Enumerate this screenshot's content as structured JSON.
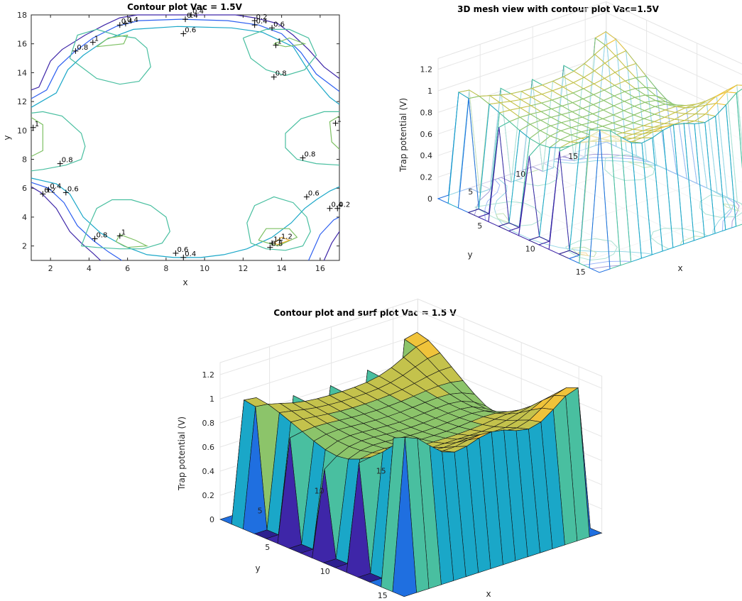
{
  "figure": {
    "panels": [
      {
        "title": "Contour plot Vac = 1.5V",
        "xlabel": "x",
        "ylabel": "y"
      },
      {
        "title": "3D mesh view with contour plot Vac=1.5V",
        "xlabel": "x",
        "ylabel": "y",
        "zlabel": "Trap potential (V)"
      },
      {
        "title": "Contour plot and surf plot Vac = 1.5 V",
        "xlabel": "x",
        "ylabel": "y",
        "zlabel": "Trap potential (V)"
      }
    ]
  },
  "chart_data": [
    {
      "type": "contour",
      "title": "Contour plot Vac = 1.5V",
      "xlabel": "x",
      "ylabel": "y",
      "xlim": [
        1,
        17
      ],
      "ylim": [
        1,
        18
      ],
      "xticks": [
        "2",
        "4",
        "6",
        "8",
        "10",
        "12",
        "14",
        "16"
      ],
      "yticks": [
        "2",
        "4",
        "6",
        "8",
        "10",
        "12",
        "14",
        "16",
        "18"
      ],
      "levels": [
        0.2,
        0.4,
        0.6,
        0.8,
        1,
        1.2
      ],
      "level_colors": [
        "#3e26a8",
        "#2d5ff0",
        "#1aa7c8",
        "#49bfa0",
        "#7dc063",
        "#f0b030"
      ],
      "contour_labels": [
        {
          "x": 5.6,
          "y": 17.3,
          "text": "0.4"
        },
        {
          "x": 5.9,
          "y": 17.4,
          "text": "0.4"
        },
        {
          "x": 9.0,
          "y": 17.7,
          "text": "0.4"
        },
        {
          "x": 9.3,
          "y": 18.0,
          "text": "0.4"
        },
        {
          "x": 8.9,
          "y": 16.7,
          "text": "0.6"
        },
        {
          "x": 12.6,
          "y": 17.6,
          "text": "0.2"
        },
        {
          "x": 12.6,
          "y": 17.3,
          "text": "0.4"
        },
        {
          "x": 13.5,
          "y": 17.1,
          "text": "0.6"
        },
        {
          "x": 4.2,
          "y": 16.1,
          "text": "1"
        },
        {
          "x": 3.3,
          "y": 15.5,
          "text": "0.8"
        },
        {
          "x": 13.7,
          "y": 15.9,
          "text": "1"
        },
        {
          "x": 13.6,
          "y": 13.7,
          "text": "0.8"
        },
        {
          "x": 1.1,
          "y": 10.2,
          "text": "1"
        },
        {
          "x": 16.8,
          "y": 10.5,
          "text": "1"
        },
        {
          "x": 2.5,
          "y": 7.7,
          "text": "0.8"
        },
        {
          "x": 15.1,
          "y": 8.1,
          "text": "0.8"
        },
        {
          "x": 1.9,
          "y": 5.9,
          "text": "0.4"
        },
        {
          "x": 1.6,
          "y": 5.6,
          "text": "0.2"
        },
        {
          "x": 2.8,
          "y": 5.7,
          "text": "0.6"
        },
        {
          "x": 15.3,
          "y": 5.4,
          "text": "0.6"
        },
        {
          "x": 16.5,
          "y": 4.6,
          "text": "0.4"
        },
        {
          "x": 16.9,
          "y": 4.6,
          "text": "0.2"
        },
        {
          "x": 4.3,
          "y": 2.5,
          "text": "0.8"
        },
        {
          "x": 5.6,
          "y": 2.7,
          "text": "1"
        },
        {
          "x": 13.5,
          "y": 2.2,
          "text": "1"
        },
        {
          "x": 13.9,
          "y": 2.4,
          "text": "1.2"
        },
        {
          "x": 13.4,
          "y": 1.9,
          "text": "0.8"
        },
        {
          "x": 8.5,
          "y": 1.5,
          "text": "0.6"
        },
        {
          "x": 8.9,
          "y": 1.2,
          "text": "0.4"
        }
      ],
      "contours": [
        {
          "level": 0.2,
          "points": [
            [
              1,
              12.8
            ],
            [
              1.4,
              13.0
            ],
            [
              2.0,
              14.8
            ],
            [
              2.6,
              15.6
            ],
            [
              3.8,
              16.6
            ],
            [
              4.8,
              17.3
            ],
            [
              5.6,
              17.8
            ],
            [
              6.5,
              18
            ],
            [
              11.6,
              18
            ],
            [
              12.6,
              17.8
            ],
            [
              13.8,
              17.4
            ],
            [
              14.6,
              16.6
            ],
            [
              15.4,
              15.6
            ],
            [
              16.2,
              14.4
            ],
            [
              17,
              13.6
            ]
          ]
        },
        {
          "level": 0.4,
          "points": [
            [
              1,
              12.2
            ],
            [
              1.8,
              12.8
            ],
            [
              2.4,
              14.4
            ],
            [
              3.2,
              15.4
            ],
            [
              4.2,
              16.4
            ],
            [
              5.4,
              17.2
            ],
            [
              6.6,
              17.6
            ],
            [
              8.8,
              17.7
            ],
            [
              11.2,
              17.6
            ],
            [
              12.8,
              17.3
            ],
            [
              14.0,
              16.7
            ],
            [
              15.0,
              15.4
            ],
            [
              15.8,
              13.9
            ],
            [
              17,
              12.7
            ]
          ]
        },
        {
          "level": 0.6,
          "points": [
            [
              1,
              11.6
            ],
            [
              2.3,
              12.6
            ],
            [
              2.9,
              14.2
            ],
            [
              3.7,
              15.2
            ],
            [
              4.9,
              16.3
            ],
            [
              6.3,
              17.0
            ],
            [
              8.6,
              17.2
            ],
            [
              11.4,
              17.1
            ],
            [
              13.0,
              16.8
            ],
            [
              14.6,
              15.8
            ],
            [
              15.6,
              13.7
            ],
            [
              16.5,
              12.3
            ],
            [
              17,
              11.8
            ]
          ]
        },
        {
          "level": 0.2,
          "points": [
            [
              1,
              6.1
            ],
            [
              1.5,
              5.7
            ],
            [
              2.3,
              4.6
            ],
            [
              3.0,
              3.0
            ],
            [
              3.6,
              2.2
            ],
            [
              4.2,
              1.5
            ],
            [
              4.6,
              1
            ]
          ]
        },
        {
          "level": 0.4,
          "points": [
            [
              1,
              6.4
            ],
            [
              1.9,
              6.0
            ],
            [
              2.7,
              5.0
            ],
            [
              3.4,
              3.4
            ],
            [
              4.2,
              2.4
            ],
            [
              5.0,
              1.6
            ],
            [
              5.7,
              1
            ]
          ]
        },
        {
          "level": 0.6,
          "points": [
            [
              1,
              6.7
            ],
            [
              2.3,
              6.3
            ],
            [
              3.0,
              5.6
            ],
            [
              3.7,
              4.0
            ],
            [
              4.6,
              2.9
            ],
            [
              5.8,
              2.0
            ],
            [
              7.0,
              1.4
            ],
            [
              8.4,
              1.2
            ],
            [
              9.8,
              1.2
            ],
            [
              11.0,
              1.4
            ],
            [
              12.2,
              1.8
            ],
            [
              13.5,
              2.6
            ],
            [
              14.5,
              3.6
            ],
            [
              15.2,
              4.6
            ],
            [
              15.8,
              5.2
            ],
            [
              16.5,
              5.8
            ],
            [
              17,
              6.1
            ]
          ]
        },
        {
          "level": 0.2,
          "points": [
            [
              16.2,
              1
            ],
            [
              16.6,
              2.2
            ],
            [
              17,
              3.0
            ]
          ]
        },
        {
          "level": 0.4,
          "points": [
            [
              15.4,
              1
            ],
            [
              16.0,
              2.8
            ],
            [
              16.7,
              3.8
            ],
            [
              17,
              4.0
            ]
          ]
        },
        {
          "level": 0.8,
          "points": [
            [
              3.0,
              15.0
            ],
            [
              3.4,
              16.6
            ],
            [
              4.4,
              17.0
            ],
            [
              5.4,
              16.6
            ],
            [
              6.4,
              16.4
            ],
            [
              7.0,
              15.7
            ],
            [
              7.2,
              14.4
            ],
            [
              6.6,
              13.4
            ],
            [
              5.6,
              13.2
            ],
            [
              4.4,
              13.6
            ],
            [
              3.0,
              15.0
            ]
          ]
        },
        {
          "level": 0.8,
          "points": [
            [
              12.0,
              16.4
            ],
            [
              12.4,
              15.0
            ],
            [
              13.2,
              14.2
            ],
            [
              14.2,
              13.8
            ],
            [
              15.2,
              14.2
            ],
            [
              15.8,
              15.2
            ],
            [
              15.4,
              16.4
            ],
            [
              14.4,
              17.0
            ],
            [
              13.2,
              17.0
            ],
            [
              12.0,
              16.4
            ]
          ]
        },
        {
          "level": 0.8,
          "points": [
            [
              1,
              11.2
            ],
            [
              1.6,
              11.3
            ],
            [
              2.6,
              11.0
            ],
            [
              3.6,
              9.8
            ],
            [
              3.8,
              8.9
            ],
            [
              3.6,
              8.0
            ],
            [
              2.8,
              7.6
            ],
            [
              1.6,
              7.3
            ],
            [
              1,
              7.2
            ]
          ]
        },
        {
          "level": 0.8,
          "points": [
            [
              17,
              11.3
            ],
            [
              16.2,
              11.3
            ],
            [
              15.0,
              10.8
            ],
            [
              14.2,
              9.8
            ],
            [
              14.2,
              8.8
            ],
            [
              14.8,
              8.0
            ],
            [
              15.8,
              7.7
            ],
            [
              17,
              7.6
            ]
          ]
        },
        {
          "level": 0.8,
          "points": [
            [
              3.6,
              2.0
            ],
            [
              4.0,
              3.4
            ],
            [
              4.4,
              4.6
            ],
            [
              5.2,
              5.2
            ],
            [
              6.2,
              5.2
            ],
            [
              7.2,
              4.8
            ],
            [
              8.0,
              4.0
            ],
            [
              8.2,
              3.0
            ],
            [
              7.8,
              2.2
            ],
            [
              6.8,
              1.8
            ],
            [
              5.6,
              1.8
            ],
            [
              4.4,
              1.9
            ],
            [
              3.6,
              2.0
            ]
          ]
        },
        {
          "level": 0.8,
          "points": [
            [
              12.4,
              2.2
            ],
            [
              12.2,
              3.6
            ],
            [
              12.6,
              4.8
            ],
            [
              13.6,
              5.4
            ],
            [
              14.6,
              5.0
            ],
            [
              15.3,
              4.0
            ],
            [
              15.5,
              3.0
            ],
            [
              15.1,
              2.0
            ],
            [
              14.2,
              1.7
            ],
            [
              13.2,
              1.8
            ],
            [
              12.4,
              2.2
            ]
          ]
        },
        {
          "level": 1,
          "points": [
            [
              4.4,
              15.8
            ],
            [
              5.0,
              16.4
            ],
            [
              6.0,
              16.6
            ],
            [
              5.8,
              16.0
            ],
            [
              4.4,
              15.8
            ]
          ]
        },
        {
          "level": 1,
          "points": [
            [
              13.6,
              16.0
            ],
            [
              14.4,
              16.4
            ],
            [
              15.2,
              16.0
            ],
            [
              14.2,
              15.8
            ],
            [
              13.6,
              16.0
            ]
          ]
        },
        {
          "level": 1,
          "points": [
            [
              1,
              10.9
            ],
            [
              1.6,
              10.4
            ],
            [
              1.6,
              8.6
            ],
            [
              1,
              8.2
            ]
          ]
        },
        {
          "level": 1,
          "points": [
            [
              17,
              11.0
            ],
            [
              16.5,
              10.6
            ],
            [
              16.6,
              9.2
            ],
            [
              17,
              8.7
            ]
          ]
        },
        {
          "level": 1,
          "points": [
            [
              5.6,
              2.8
            ],
            [
              6.4,
              2.4
            ],
            [
              7.0,
              2.0
            ],
            [
              6.0,
              1.9
            ],
            [
              5.4,
              2.3
            ],
            [
              5.6,
              2.8
            ]
          ]
        },
        {
          "level": 1,
          "points": [
            [
              12.8,
              2.4
            ],
            [
              13.2,
              3.2
            ],
            [
              14.4,
              3.2
            ],
            [
              14.8,
              2.6
            ],
            [
              13.8,
              2.0
            ],
            [
              12.8,
              2.4
            ]
          ]
        },
        {
          "level": 1.2,
          "points": [
            [
              13.6,
              2.2
            ],
            [
              14.0,
              2.6
            ],
            [
              14.4,
              2.4
            ],
            [
              13.8,
              2.1
            ],
            [
              13.6,
              2.2
            ]
          ]
        }
      ]
    },
    {
      "type": "mesh3d",
      "title": "3D mesh view with contour plot Vac=1.5V",
      "xlabel": "x",
      "ylabel": "y",
      "zlabel": "Trap potential (V)",
      "xlim": [
        1,
        17
      ],
      "ylim": [
        1,
        17
      ],
      "zlim": [
        0,
        1.2
      ],
      "xticks": [
        "5",
        "10",
        "15"
      ],
      "yticks": [
        "5",
        "10",
        "15"
      ],
      "zticks": [
        "0",
        "0.2",
        "0.4",
        "0.6",
        "0.8",
        "1",
        "1.2"
      ]
    },
    {
      "type": "surf3d",
      "title": "Contour plot and surf plot Vac = 1.5 V",
      "xlabel": "x",
      "ylabel": "y",
      "zlabel": "Trap potential (V)",
      "xlim": [
        1,
        17
      ],
      "ylim": [
        1,
        17
      ],
      "zlim": [
        0,
        1.2
      ],
      "xticks": [
        "5",
        "10",
        "15"
      ],
      "yticks": [
        "5",
        "10",
        "15"
      ],
      "zticks": [
        "0",
        "0.2",
        "0.4",
        "0.6",
        "0.8",
        "1",
        "1.2"
      ]
    }
  ]
}
